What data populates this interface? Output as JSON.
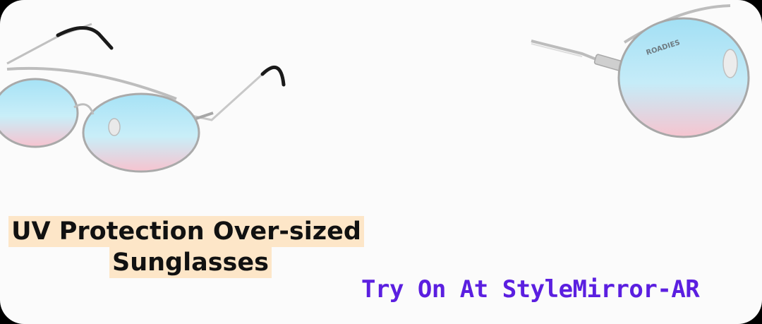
{
  "product": {
    "title_line1": "UV Protection Over-sized",
    "title_line2": "Sunglasses",
    "cta": "Try On At StyleMirror-AR",
    "brand_mark": "ROADIES"
  },
  "images": [
    {
      "name": "sunglasses-front-angle-image"
    },
    {
      "name": "sunglasses-side-angle-image"
    }
  ],
  "colors": {
    "background": "#fbfbfb",
    "title_highlight": "#fde6c8",
    "title_text": "#111111",
    "cta_text": "#5b1fe0",
    "lens_top": "#a9e3f5",
    "lens_bottom": "#f6c8d2",
    "frame": "#b9b9b9",
    "temple_tip": "#1a1a1a"
  }
}
